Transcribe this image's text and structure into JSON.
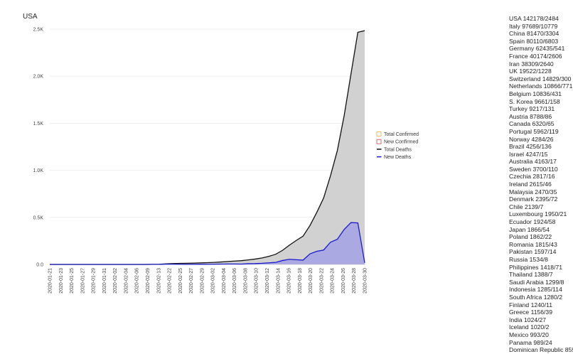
{
  "chart_data": {
    "type": "area",
    "title": "USA",
    "ylim": [
      0,
      2500
    ],
    "y_ticks": [
      {
        "value": 0,
        "label": "0.0"
      },
      {
        "value": 500,
        "label": "0.5K"
      },
      {
        "value": 1000,
        "label": "1.0K"
      },
      {
        "value": 1500,
        "label": "1.5K"
      },
      {
        "value": 2000,
        "label": "2.0K"
      },
      {
        "value": 2500,
        "label": "2.5K"
      }
    ],
    "x_tick_labels": [
      "2020-01-21",
      "2020-01-23",
      "2020-01-25",
      "2020-01-27",
      "2020-01-29",
      "2020-01-31",
      "2020-02-02",
      "2020-02-04",
      "2020-02-06",
      "2020-02-09",
      "2020-02-13",
      "2020-02-22",
      "2020-02-25",
      "2020-02-27",
      "2020-02-29",
      "2020-03-02",
      "2020-03-04",
      "2020-03-06",
      "2020-03-08",
      "2020-03-10",
      "2020-03-12",
      "2020-03-14",
      "2020-03-16",
      "2020-03-18",
      "2020-03-20",
      "2020-03-22",
      "2020-03-24",
      "2020-03-26",
      "2020-03-28",
      "2020-03-30"
    ],
    "grid": true,
    "legend_position": "right",
    "series": [
      {
        "name": "Total Confirmed",
        "marker": "open-square",
        "color": "#e8b84a",
        "values": []
      },
      {
        "name": "New Confirmed",
        "marker": "open-square",
        "color": "#e05a5a",
        "values": []
      },
      {
        "name": "Total Deaths",
        "marker": "line",
        "color": "#111111",
        "values": [
          0,
          0,
          0,
          0,
          0,
          0,
          0,
          0,
          0,
          0,
          0,
          0,
          0,
          0,
          0,
          1,
          2,
          6,
          9,
          11,
          12,
          14,
          17,
          19,
          22,
          26,
          31,
          36,
          40,
          48,
          57,
          69,
          86,
          108,
          150,
          205,
          255,
          301,
          413,
          553,
          706,
          942,
          1209,
          1581,
          2026,
          2467,
          2484
        ]
      },
      {
        "name": "New Deaths",
        "marker": "line",
        "color": "#1a1acc",
        "values": [
          0,
          0,
          0,
          0,
          0,
          0,
          0,
          0,
          0,
          0,
          0,
          0,
          0,
          0,
          0,
          1,
          1,
          4,
          3,
          2,
          1,
          2,
          3,
          2,
          3,
          4,
          5,
          5,
          4,
          8,
          9,
          12,
          17,
          22,
          42,
          55,
          50,
          46,
          112,
          140,
          153,
          236,
          267,
          372,
          445,
          441,
          17
        ]
      }
    ]
  },
  "countries": [
    "USA 142178/2484",
    "Italy 97689/10779",
    "China 81470/3304",
    "Spain 80110/6803",
    "Germany 62435/541",
    "France 40174/2606",
    "Iran 38309/2640",
    "UK 19522/1228",
    "Switzerland 14829/300",
    "Netherlands 10866/771",
    "Belgium 10836/431",
    "S. Korea 9661/158",
    "Turkey 9217/131",
    "Austria 8788/86",
    "Canada 6320/65",
    "Portugal 5962/119",
    "Norway 4284/26",
    "Brazil 4256/136",
    "Israel 4247/15",
    "Australia 4163/17",
    "Sweden 3700/110",
    "Czechia 2817/16",
    "Ireland 2615/46",
    "Malaysia 2470/35",
    "Denmark 2395/72",
    "Chile 2139/7",
    "Luxembourg 1950/21",
    "Ecuador 1924/58",
    "Japan 1866/54",
    "Poland 1862/22",
    "Romania 1815/43",
    "Pakistan 1597/14",
    "Russia 1534/8",
    "Philippines 1418/71",
    "Thailand 1388/7",
    "Saudi Arabia 1299/8",
    "Indonesia 1285/114",
    "South Africa 1280/2",
    "Finland 1240/11",
    "Greece 1156/39",
    "India 1024/27",
    "Iceland 1020/2",
    "Mexico 993/20",
    "Panama 989/24",
    "Dominican Republic 859/"
  ]
}
